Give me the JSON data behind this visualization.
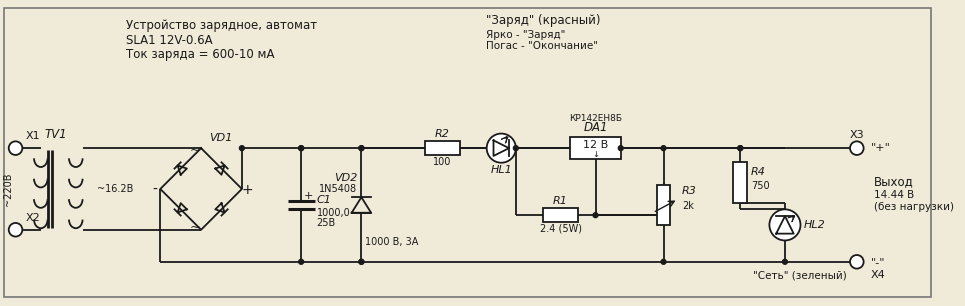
{
  "bg_color": "#f0ead8",
  "line_color": "#1a1a1a",
  "title_lines": [
    "Устройство зарядное, автомат",
    "SLA1 12V-0.6A",
    "Ток заряда = 600-10 мА"
  ],
  "charge_label": "\"Заряд\" (красный)",
  "charge_sub1": "Ярко - \"Заряд\"",
  "charge_sub2": "Погас - \"Окончание\"",
  "output_label": "Выход",
  "output_sub1": "14.44 В",
  "output_sub2": "(без нагрузки)"
}
